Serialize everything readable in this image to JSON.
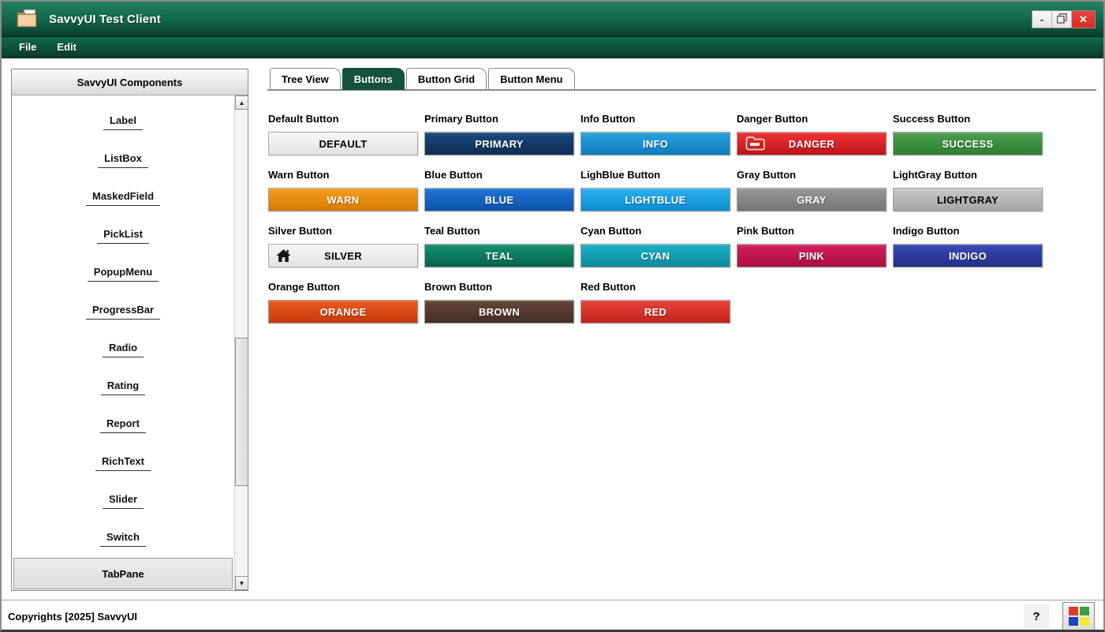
{
  "window": {
    "title": "SavvyUI Test Client",
    "controls": {
      "minimize": "-",
      "close": "✕"
    }
  },
  "menubar": {
    "items": [
      {
        "label": "File"
      },
      {
        "label": "Edit"
      }
    ]
  },
  "sidebar": {
    "header": "SavvyUI Components",
    "items": [
      "Label",
      "ListBox",
      "MaskedField",
      "PickList",
      "PopupMenu",
      "ProgressBar",
      "Radio",
      "Rating",
      "Report",
      "RichText",
      "Slider",
      "Switch"
    ],
    "selected_item": "TabPane"
  },
  "tabs": [
    {
      "label": "Tree View",
      "active": false
    },
    {
      "label": "Buttons",
      "active": true
    },
    {
      "label": "Button Grid",
      "active": false
    },
    {
      "label": "Button Menu",
      "active": false
    }
  ],
  "buttons": [
    {
      "label": "Default Button",
      "text": "DEFAULT",
      "bg_top": "#f8f8f8",
      "bg_bottom": "#e1e1e1",
      "fg": "#000000",
      "border": "#a9a9a9",
      "icon": null
    },
    {
      "label": "Primary Button",
      "text": "PRIMARY",
      "bg_top": "#1c4a80",
      "bg_bottom": "#0e2c52",
      "fg": "#ffffff",
      "border": "#999999",
      "icon": null
    },
    {
      "label": "Info Button",
      "text": "INFO",
      "bg_top": "#2aa2e0",
      "bg_bottom": "#0f7cba",
      "fg": "#ffffff",
      "border": "#999999",
      "icon": null
    },
    {
      "label": "Danger Button",
      "text": "DANGER",
      "bg_top": "#ee3434",
      "bg_bottom": "#bf1318",
      "fg": "#ffffff",
      "border": "#999999",
      "icon": "folder-minus"
    },
    {
      "label": "Success Button",
      "text": "SUCCESS",
      "bg_top": "#4da050",
      "bg_bottom": "#2e7d32",
      "fg": "#ffffff",
      "border": "#999999",
      "icon": null
    },
    {
      "label": "Warn Button",
      "text": "WARN",
      "bg_top": "#f59d1e",
      "bg_bottom": "#d87a00",
      "fg": "#ffffff",
      "border": "#999999",
      "icon": null
    },
    {
      "label": "Blue Button",
      "text": "BLUE",
      "bg_top": "#1f75d8",
      "bg_bottom": "#0f51a5",
      "fg": "#ffffff",
      "border": "#999999",
      "icon": null
    },
    {
      "label": "LighBlue Button",
      "text": "LIGHTBLUE",
      "bg_top": "#2cb0f0",
      "bg_bottom": "#0b8cd0",
      "fg": "#ffffff",
      "border": "#999999",
      "icon": null
    },
    {
      "label": "Gray Button",
      "text": "GRAY",
      "bg_top": "#989898",
      "bg_bottom": "#747474",
      "fg": "#ffffff",
      "border": "#999999",
      "icon": null
    },
    {
      "label": "LightGray Button",
      "text": "LIGHTGRAY",
      "bg_top": "#c8c8c8",
      "bg_bottom": "#a5a5a5",
      "fg": "#000000",
      "border": "#999999",
      "icon": null
    },
    {
      "label": "Silver Button",
      "text": "SILVER",
      "bg_top": "#f7f7f7",
      "bg_bottom": "#e2e2e2",
      "fg": "#000000",
      "border": "#a9a9a9",
      "icon": "home"
    },
    {
      "label": "Teal Button",
      "text": "TEAL",
      "bg_top": "#149070",
      "bg_bottom": "#07634c",
      "fg": "#ffffff",
      "border": "#999999",
      "icon": null
    },
    {
      "label": "Cyan Button",
      "text": "CYAN",
      "bg_top": "#1cb2c4",
      "bg_bottom": "#0b8a9c",
      "fg": "#ffffff",
      "border": "#999999",
      "icon": null
    },
    {
      "label": "Pink Button",
      "text": "PINK",
      "bg_top": "#d42060",
      "bg_bottom": "#a80e42",
      "fg": "#ffffff",
      "border": "#999999",
      "icon": null
    },
    {
      "label": "Indigo Button",
      "text": "INDIGO",
      "bg_top": "#3a4ab8",
      "bg_bottom": "#222e84",
      "fg": "#ffffff",
      "border": "#999999",
      "icon": null
    },
    {
      "label": "Orange Button",
      "text": "ORANGE",
      "bg_top": "#ec5a20",
      "bg_bottom": "#c73a0c",
      "fg": "#ffffff",
      "border": "#999999",
      "icon": null
    },
    {
      "label": "Brown Button",
      "text": "BROWN",
      "bg_top": "#64463a",
      "bg_bottom": "#452e26",
      "fg": "#ffffff",
      "border": "#999999",
      "icon": null
    },
    {
      "label": "Red Button",
      "text": "RED",
      "bg_top": "#e84438",
      "bg_bottom": "#c2231c",
      "fg": "#ffffff",
      "border": "#999999",
      "icon": null
    }
  ],
  "statusbar": {
    "copyright": "Copyrights [2025] SavvyUI",
    "help": "?",
    "about_icon_colors": [
      "#e03a2a",
      "#3e9e3e",
      "#1b46c0",
      "#f5e82a"
    ]
  },
  "colors": {
    "titlebar_top": "#25815f",
    "titlebar_bottom": "#0a3d2b",
    "menubar_top": "#0f6a4b",
    "menubar_bottom": "#093d2b",
    "active_tab": "#14533a",
    "close_button": "#d62a22"
  }
}
